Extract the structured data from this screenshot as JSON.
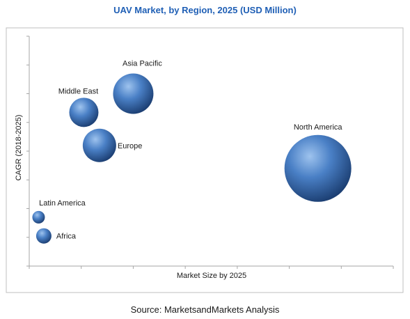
{
  "source": "Source: MarketsandMarkets Analysis",
  "colors": {
    "title": "#1f5fb5",
    "plot_border": "#bfbfbf",
    "axis": "#a6a6a6",
    "bubble_light": "#9ec3ee",
    "bubble_mid": "#4a80c6",
    "bubble_dark": "#1c3f73"
  },
  "chart_data": {
    "type": "bubble",
    "title": "UAV Market, by Region, 2025 (USD Million)",
    "xlabel": "Market Size by 2025",
    "ylabel": "CAGR (2018-2025)",
    "xlim": [
      0,
      7
    ],
    "ylim": [
      0,
      8
    ],
    "axis_tick_labels_shown": false,
    "points": [
      {
        "label": "North America",
        "x": 5.55,
        "y": 3.4,
        "size": 48
      },
      {
        "label": "Asia Pacific",
        "x": 2.0,
        "y": 6.0,
        "size": 29
      },
      {
        "label": "Middle East",
        "x": 1.05,
        "y": 5.35,
        "size": 21
      },
      {
        "label": "Europe",
        "x": 1.35,
        "y": 4.2,
        "size": 24
      },
      {
        "label": "Latin America",
        "x": 0.18,
        "y": 1.7,
        "size": 9
      },
      {
        "label": "Africa",
        "x": 0.28,
        "y": 1.05,
        "size": 11
      }
    ]
  }
}
